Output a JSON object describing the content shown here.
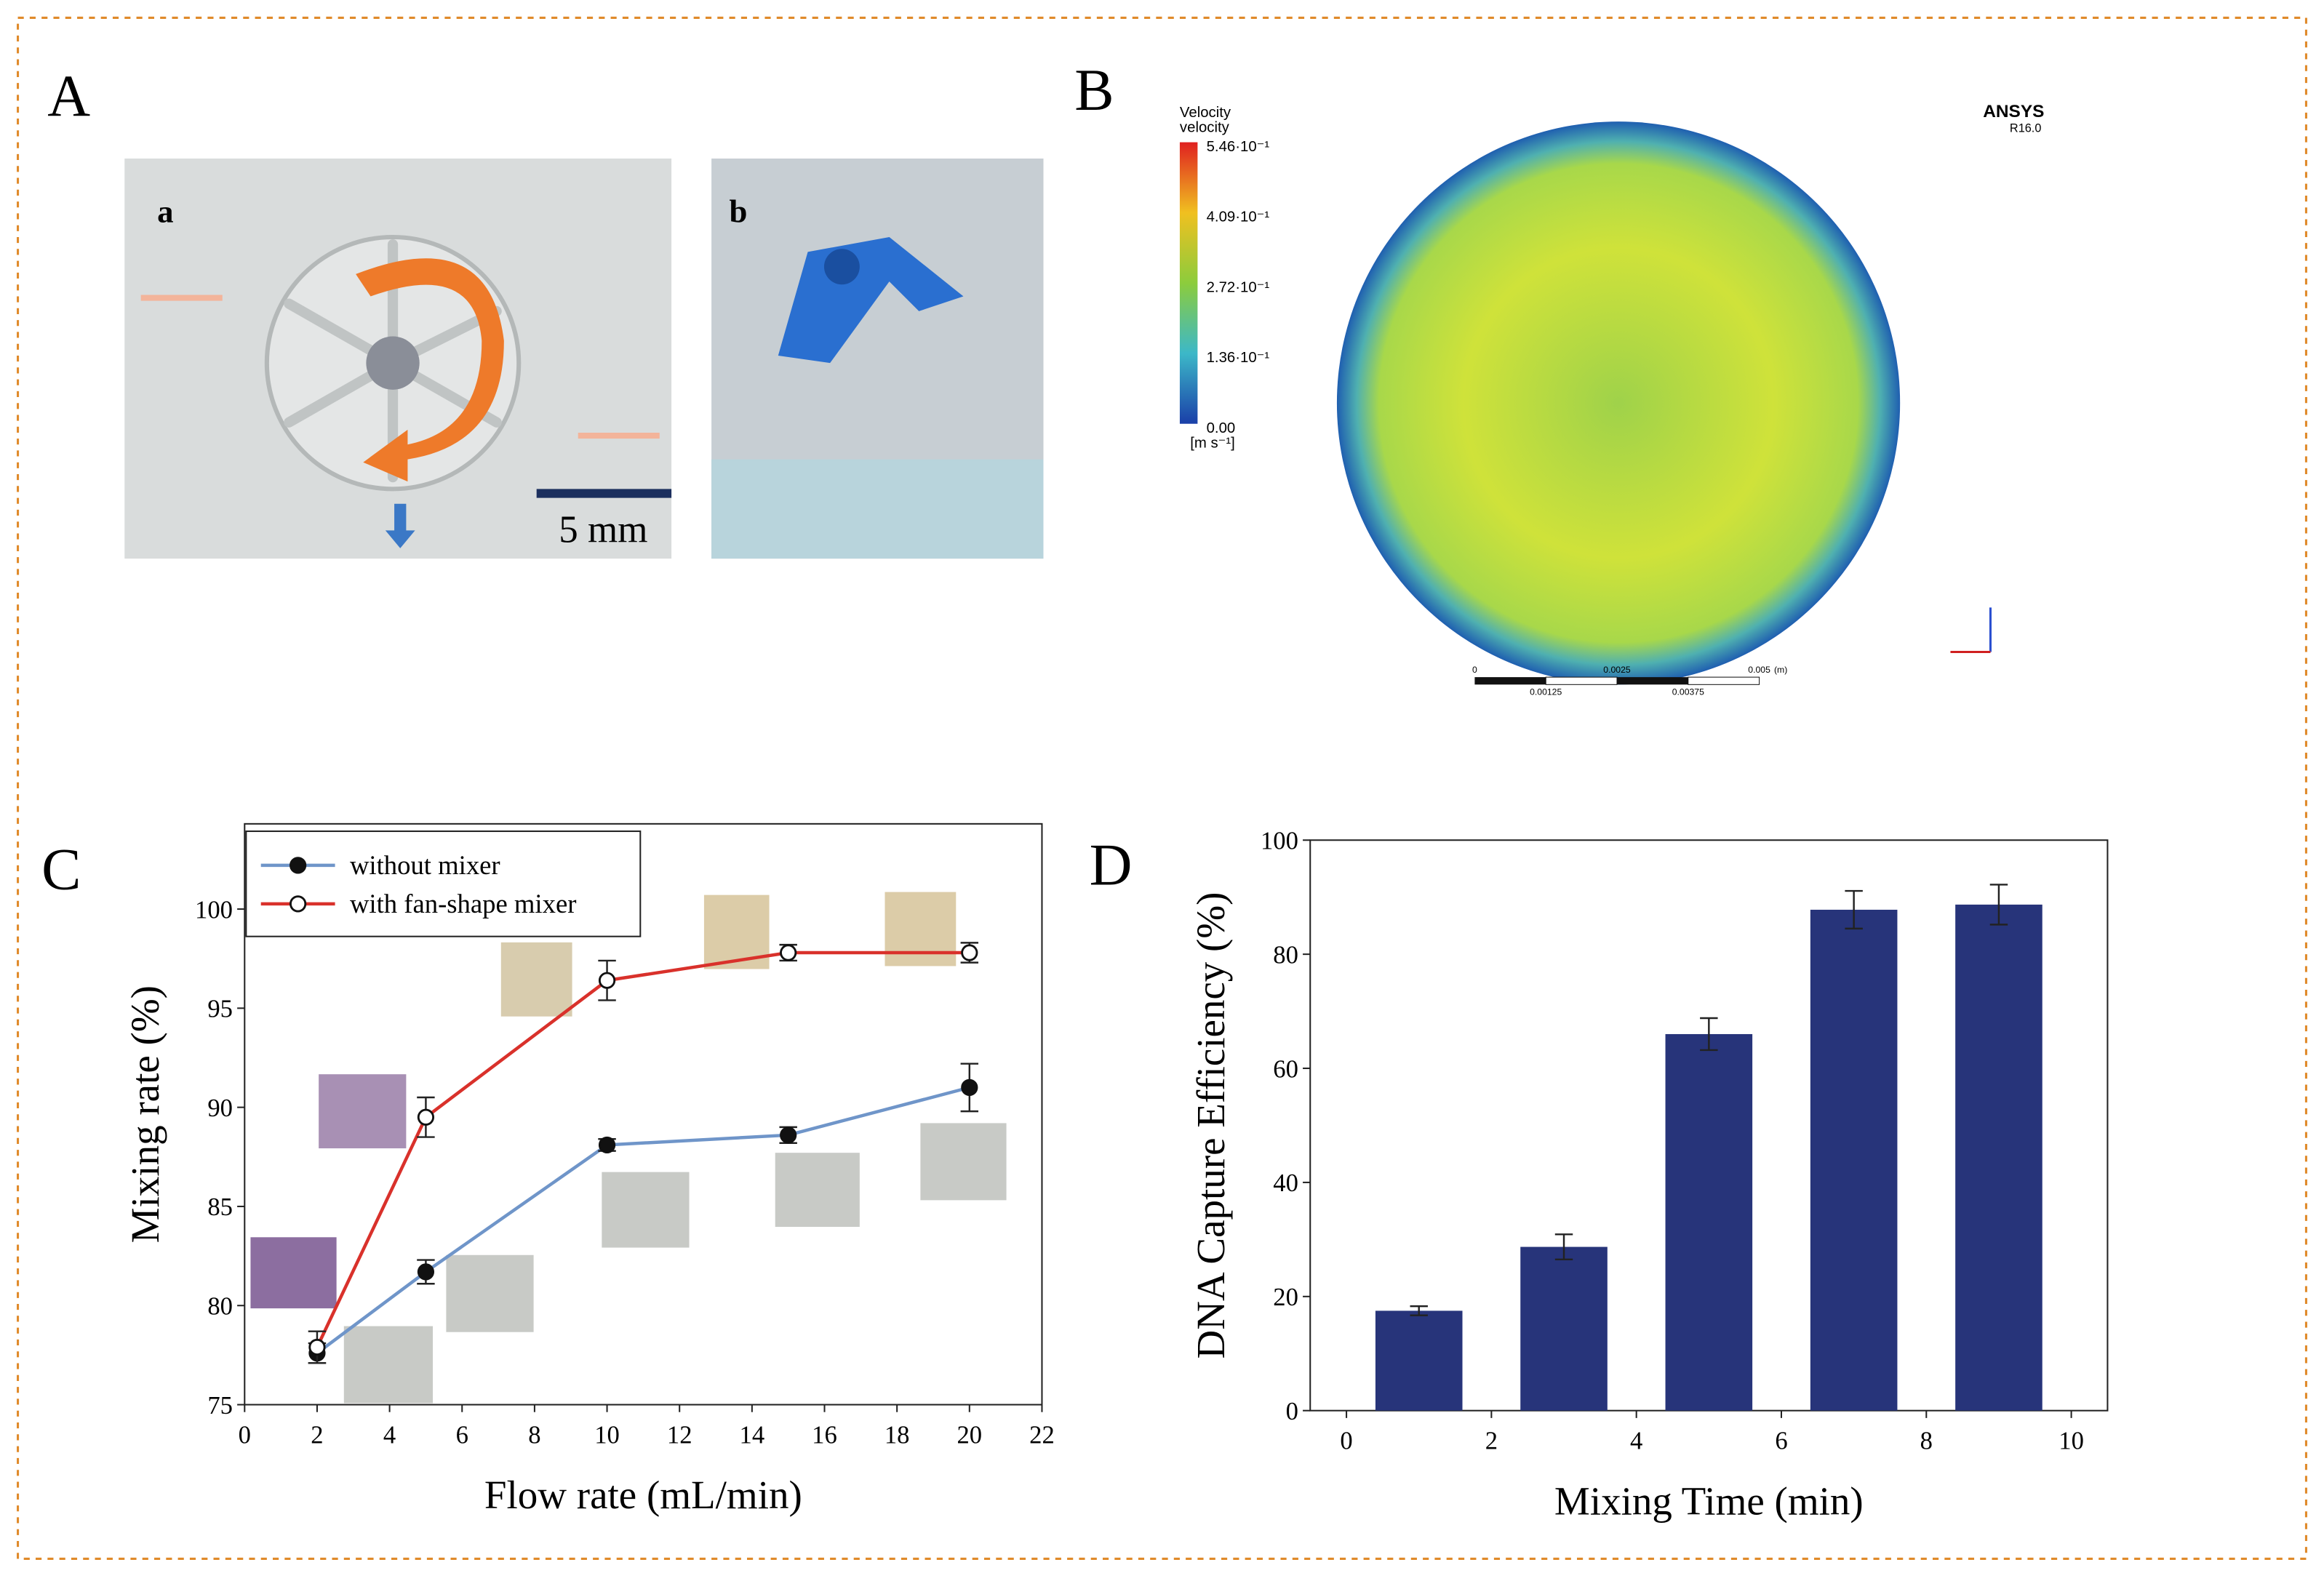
{
  "panels": {
    "A": "A",
    "a": "a",
    "b": "b",
    "scale": "5 mm",
    "B": "B",
    "C": "C",
    "D": "D"
  },
  "simulation": {
    "legend_title": "Velocity",
    "legend_subtitle": "velocity",
    "colorbar_labels": [
      "5.46·10⁻¹",
      "4.09·10⁻¹",
      "2.72·10⁻¹",
      "1.36·10⁻¹",
      "0.00"
    ],
    "unit": "[m s⁻¹]",
    "software": "ANSYS",
    "version": "R16.0",
    "scale_labels": [
      "0",
      "0.0025",
      "0.005",
      "(m)"
    ],
    "scale_labels_lower": [
      "0.00125",
      "0.00375"
    ]
  },
  "chart_data": [
    {
      "type": "line",
      "x": [
        2,
        5,
        10,
        15,
        20
      ],
      "xlim": [
        0,
        22
      ],
      "xticks": [
        0,
        2,
        4,
        6,
        8,
        10,
        12,
        14,
        16,
        18,
        20,
        22
      ],
      "ylim": [
        75,
        104.3
      ],
      "yticks": [
        75,
        80,
        85,
        90,
        95,
        100
      ],
      "xlabel": "Flow rate (mL/min)",
      "ylabel": "Mixing rate (%)",
      "legend": "upper left",
      "series": [
        {
          "name": "without mixer",
          "color": "#6f95c9",
          "marker": "filled",
          "values": [
            77.6,
            81.7,
            88.1,
            88.6,
            91.0
          ],
          "errors": [
            0.5,
            0.6,
            0.3,
            0.4,
            1.2
          ]
        },
        {
          "name": "with fan-shape mixer",
          "color": "#d9312b",
          "marker": "open",
          "values": [
            77.9,
            89.5,
            96.4,
            97.8,
            97.8
          ],
          "errors": [
            0.8,
            1.0,
            1.0,
            0.4,
            0.5
          ]
        }
      ]
    },
    {
      "type": "bar",
      "x": [
        1,
        3,
        5,
        7,
        9
      ],
      "values": [
        17.5,
        28.7,
        66.0,
        87.8,
        88.7
      ],
      "errors": [
        0.8,
        2.2,
        2.8,
        3.3,
        3.5
      ],
      "color": "#27347a",
      "xlim": [
        -0.5,
        10.5
      ],
      "xticks": [
        0,
        2,
        4,
        6,
        8,
        10
      ],
      "ylim": [
        0,
        100
      ],
      "yticks": [
        0,
        20,
        40,
        60,
        80,
        100
      ],
      "xlabel": "Mixing Time (min)",
      "ylabel": "DNA Capture Efficiency (%)"
    }
  ]
}
